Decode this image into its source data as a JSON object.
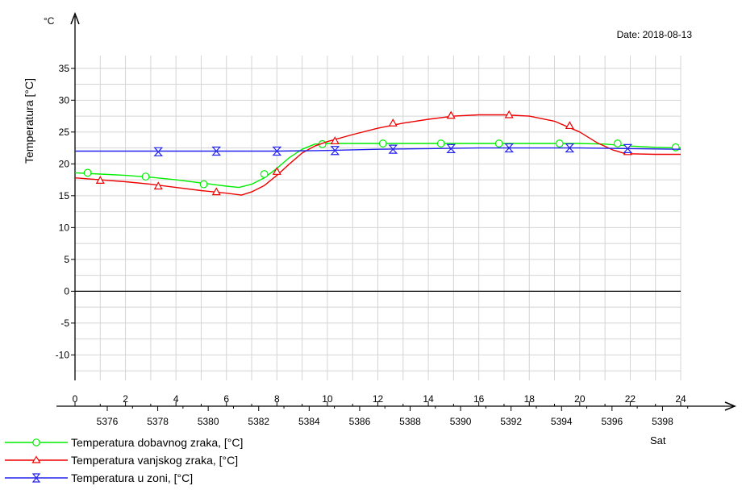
{
  "chart_data": {
    "type": "line",
    "date_label": "Date: 2018-08-13",
    "ylabel": "Temperatura [°C]",
    "yunit": "°C",
    "xlabel": "Sat",
    "ylim": [
      -14,
      37
    ],
    "xlim": [
      0,
      24
    ],
    "y_ticks": [
      "35",
      "30",
      "25",
      "20",
      "15",
      "10",
      "5",
      "0",
      "-5",
      "-10"
    ],
    "x_ticks_top": [
      "0",
      "2",
      "4",
      "6",
      "8",
      "10",
      "12",
      "14",
      "16",
      "18",
      "20",
      "22",
      "24"
    ],
    "x_ticks_bottom": [
      "5376",
      "5378",
      "5380",
      "5382",
      "5384",
      "5386",
      "5388",
      "5390",
      "5392",
      "5394",
      "5396",
      "5398"
    ],
    "grid": true,
    "legend_position": "bottom-left",
    "series": [
      {
        "name": "Temperatura dobavnog zraka, [°C]",
        "color": "#00ee00",
        "marker": "circle",
        "x": [
          0,
          1,
          2,
          3,
          4,
          5,
          6,
          6.5,
          7,
          7.5,
          8,
          8.5,
          9,
          9.5,
          10,
          11,
          12,
          13,
          14,
          15,
          16,
          17,
          18,
          19,
          20,
          21,
          22,
          23,
          24
        ],
        "y": [
          18.6,
          18.4,
          18.2,
          17.9,
          17.5,
          17.0,
          16.5,
          16.3,
          16.8,
          17.8,
          19.3,
          21.0,
          22.3,
          23.1,
          23.2,
          23.2,
          23.2,
          23.2,
          23.2,
          23.2,
          23.2,
          23.2,
          23.2,
          23.2,
          23.2,
          23.1,
          22.8,
          22.6,
          22.5
        ],
        "markers_x": [
          0.5,
          2.8,
          5.1,
          7.5,
          9.8,
          12.2,
          14.5,
          16.8,
          19.2,
          21.5,
          23.8
        ],
        "markers_y": [
          18.6,
          18.0,
          16.8,
          18.4,
          23.1,
          23.2,
          23.2,
          23.2,
          23.2,
          23.2,
          22.6
        ]
      },
      {
        "name": "Temperatura vanjskog zraka, [°C]",
        "color": "#ee0000",
        "marker": "triangle",
        "x": [
          0,
          1,
          2,
          3,
          4,
          5,
          6,
          6.6,
          7,
          7.5,
          8,
          8.5,
          9,
          9.5,
          10,
          11,
          12,
          13,
          14,
          15,
          16,
          17,
          18,
          19,
          20,
          20.7,
          21.3,
          21.8,
          23,
          24
        ],
        "y": [
          17.8,
          17.5,
          17.2,
          16.8,
          16.3,
          15.8,
          15.4,
          15.1,
          15.6,
          16.6,
          18.2,
          20.0,
          21.7,
          22.8,
          23.5,
          24.6,
          25.6,
          26.4,
          27.0,
          27.5,
          27.7,
          27.7,
          27.5,
          26.7,
          25.0,
          23.3,
          22.2,
          21.6,
          21.5,
          21.5
        ],
        "markers_x": [
          1.0,
          3.3,
          5.6,
          8.0,
          10.3,
          12.6,
          14.9,
          17.2,
          19.6,
          21.9
        ],
        "markers_y": [
          17.4,
          16.5,
          15.6,
          18.8,
          23.6,
          26.4,
          27.6,
          27.7,
          26.0,
          21.9
        ]
      },
      {
        "name": "Temperatura u zoni, [°C]",
        "color": "#2222ee",
        "marker": "hourglass",
        "x": [
          0,
          4,
          8,
          10,
          12,
          14,
          16,
          18,
          20,
          22,
          24
        ],
        "y": [
          22.0,
          22.0,
          22.0,
          22.1,
          22.3,
          22.4,
          22.5,
          22.5,
          22.5,
          22.4,
          22.3
        ],
        "markers_x": [
          3.3,
          5.6,
          8.0,
          10.3,
          12.6,
          14.9,
          17.2,
          19.6,
          21.9
        ],
        "markers_y": [
          21.9,
          22.0,
          22.0,
          22.1,
          22.3,
          22.4,
          22.5,
          22.5,
          22.4
        ]
      }
    ]
  }
}
